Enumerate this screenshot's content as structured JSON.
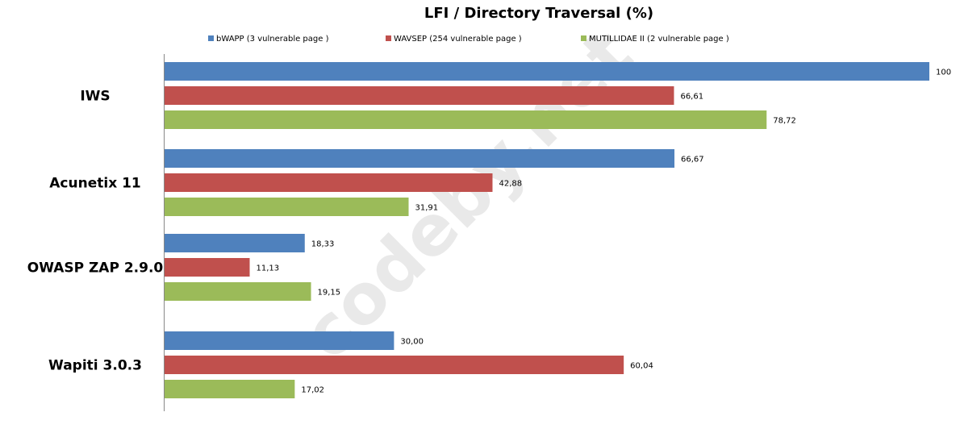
{
  "watermark": "codeby.net",
  "chart_data": {
    "type": "bar",
    "orientation": "horizontal",
    "title": "LFI / Directory Traversal (%)",
    "xlim": [
      0,
      100
    ],
    "grid": false,
    "legend_position": "top",
    "categories": [
      "IWS",
      "Acunetix 11",
      "OWASP ZAP 2.9.0",
      "Wapiti 3.0.3"
    ],
    "series": [
      {
        "name": "bWAPP (3 vulnerable page )",
        "color": "#4f81bd",
        "values": [
          100,
          66.67,
          18.33,
          30.0
        ],
        "labels": [
          "100",
          "66,67",
          "18,33",
          "30,00"
        ]
      },
      {
        "name": "WAVSEP (254 vulnerable page )",
        "color": "#c0504d",
        "values": [
          66.61,
          42.88,
          11.13,
          60.04
        ],
        "labels": [
          "66,61",
          "42,88",
          "11,13",
          "60,04"
        ]
      },
      {
        "name": "MUTILLIDAE II (2 vulnerable page )",
        "color": "#9bbb59",
        "values": [
          78.72,
          31.91,
          19.15,
          17.02
        ],
        "labels": [
          "78,72",
          "31,91",
          "19,15",
          "17,02"
        ]
      }
    ]
  }
}
